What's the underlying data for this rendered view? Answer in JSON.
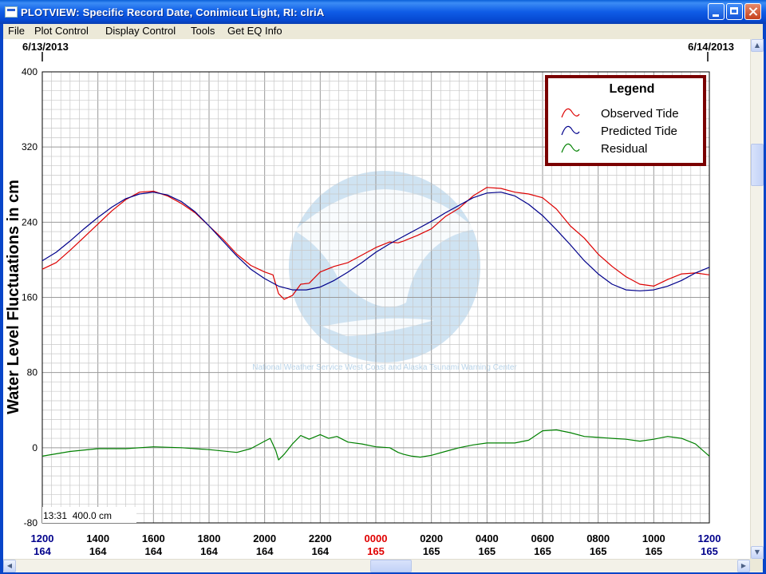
{
  "window": {
    "title": "PLOTVIEW: Specific Record Date, Conimicut Light, RI: clriA"
  },
  "menu": [
    "File",
    "Plot Control",
    "Display Control",
    "Tools",
    "Get EQ Info"
  ],
  "dates": {
    "start": "6/13/2013",
    "end": "6/14/2013"
  },
  "status_readout": "13:31  400.0 cm",
  "watermark_text": "National Weather Service West Coast and Alaska Tsunami Warning Center",
  "colors": {
    "observed": "#dd0000",
    "predicted": "#00008b",
    "residual": "#008000",
    "legend_border": "#7a0000",
    "midnight": "#e00000",
    "hour_blue": "#00008b"
  },
  "chart_data": {
    "type": "line",
    "ylabel": "Water Level Fluctuations in cm",
    "ylim": [
      -80,
      400
    ],
    "yticks": [
      -80,
      0,
      80,
      160,
      240,
      320,
      400
    ],
    "xlim": [
      0,
      24
    ],
    "x_unit": "hours after 1200 on 6/13/2013",
    "xticks": [
      {
        "x": 0,
        "hour": "1200",
        "day": "164",
        "hour_color": "blue"
      },
      {
        "x": 2,
        "hour": "1400",
        "day": "164"
      },
      {
        "x": 4,
        "hour": "1600",
        "day": "164"
      },
      {
        "x": 6,
        "hour": "1800",
        "day": "164"
      },
      {
        "x": 8,
        "hour": "2000",
        "day": "164"
      },
      {
        "x": 10,
        "hour": "2200",
        "day": "164"
      },
      {
        "x": 12,
        "hour": "0000",
        "day": "165",
        "hour_color": "red"
      },
      {
        "x": 14,
        "hour": "0200",
        "day": "165"
      },
      {
        "x": 16,
        "hour": "0400",
        "day": "165"
      },
      {
        "x": 18,
        "hour": "0600",
        "day": "165"
      },
      {
        "x": 20,
        "hour": "0800",
        "day": "165"
      },
      {
        "x": 22,
        "hour": "1000",
        "day": "165"
      },
      {
        "x": 24,
        "hour": "1200",
        "day": "165",
        "hour_color": "blue"
      }
    ],
    "grid": true,
    "legend": {
      "title": "Legend",
      "position": "top-right"
    },
    "series": [
      {
        "name": "Observed Tide",
        "color": "#dd0000",
        "x": [
          0,
          0.5,
          1,
          1.5,
          2,
          2.5,
          3,
          3.5,
          4,
          4.5,
          5,
          5.5,
          6,
          6.5,
          7,
          7.5,
          8,
          8.3,
          8.5,
          8.7,
          9,
          9.3,
          9.6,
          10,
          10.5,
          11,
          11.5,
          12,
          12.5,
          12.8,
          13,
          13.5,
          14,
          14.5,
          15,
          15.5,
          16,
          16.5,
          17,
          17.5,
          18,
          18.5,
          19,
          19.5,
          20,
          20.5,
          21,
          21.5,
          22,
          22.5,
          23,
          23.5,
          24
        ],
        "y": [
          190,
          197,
          210,
          224,
          238,
          252,
          264,
          272,
          273,
          268,
          260,
          250,
          236,
          222,
          206,
          194,
          187,
          184,
          164,
          158,
          162,
          174,
          175,
          187,
          193,
          197,
          205,
          213,
          219,
          218,
          220,
          226,
          233,
          246,
          255,
          268,
          277,
          276,
          272,
          270,
          266,
          254,
          236,
          223,
          206,
          193,
          182,
          174,
          172,
          179,
          185,
          186,
          184
        ]
      },
      {
        "name": "Predicted Tide",
        "color": "#00008b",
        "x": [
          0,
          0.5,
          1,
          1.5,
          2,
          2.5,
          3,
          3.5,
          4,
          4.5,
          5,
          5.5,
          6,
          6.5,
          7,
          7.5,
          8,
          8.5,
          9,
          9.5,
          10,
          10.5,
          11,
          11.5,
          12,
          12.5,
          13,
          13.5,
          14,
          14.5,
          15,
          15.5,
          16,
          16.5,
          17,
          17.5,
          18,
          18.5,
          19,
          19.5,
          20,
          20.5,
          21,
          21.5,
          22,
          22.5,
          23,
          23.5,
          24
        ],
        "y": [
          199,
          208,
          220,
          233,
          245,
          256,
          265,
          270,
          272,
          269,
          262,
          251,
          236,
          220,
          204,
          190,
          180,
          172,
          168,
          168,
          171,
          178,
          187,
          197,
          208,
          217,
          225,
          233,
          241,
          250,
          258,
          266,
          271,
          272,
          268,
          259,
          247,
          232,
          216,
          199,
          185,
          174,
          168,
          167,
          168,
          172,
          178,
          186,
          192
        ]
      },
      {
        "name": "Residual",
        "color": "#008000",
        "x": [
          0,
          1,
          2,
          3,
          4,
          5,
          6,
          7,
          7.5,
          8,
          8.2,
          8.4,
          8.5,
          8.7,
          9,
          9.3,
          9.6,
          10,
          10.3,
          10.6,
          11,
          11.5,
          12,
          12.5,
          12.8,
          13,
          13.3,
          13.6,
          14,
          14.5,
          15,
          15.5,
          16,
          16.5,
          17,
          17.5,
          18,
          18.5,
          19,
          19.5,
          20,
          20.5,
          21,
          21.5,
          22,
          22.5,
          23,
          23.5,
          24
        ],
        "y": [
          -9,
          -4,
          -1,
          -1,
          1,
          0,
          -2,
          -5,
          -1,
          7,
          10,
          -3,
          -13,
          -7,
          4,
          13,
          9,
          14,
          10,
          12,
          6,
          4,
          1,
          0,
          -5,
          -7,
          -9,
          -10,
          -8,
          -4,
          0,
          3,
          5,
          5,
          5,
          8,
          18,
          19,
          16,
          12,
          11,
          10,
          9,
          7,
          9,
          12,
          10,
          4,
          -9
        ]
      }
    ]
  }
}
